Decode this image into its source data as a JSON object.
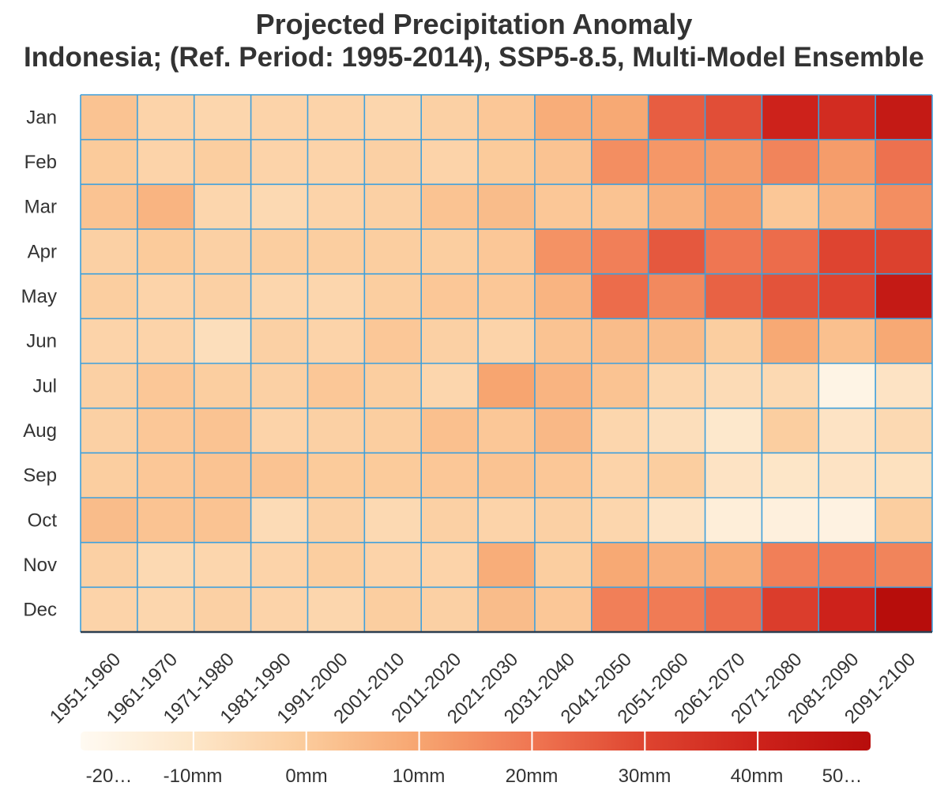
{
  "chart_data": {
    "type": "heatmap",
    "title": "Projected Precipitation Anomaly",
    "subtitle": "Indonesia; (Ref. Period: 1995-2014), SSP5-8.5, Multi-Model Ensemble",
    "rows": [
      "Jan",
      "Feb",
      "Mar",
      "Apr",
      "May",
      "Jun",
      "Jul",
      "Aug",
      "Sep",
      "Oct",
      "Nov",
      "Dec"
    ],
    "columns": [
      "1951-1960",
      "1961-1970",
      "1971-1980",
      "1981-1990",
      "1991-2000",
      "2001-2010",
      "2011-2020",
      "2021-2030",
      "2031-2040",
      "2041-2050",
      "2051-2060",
      "2061-2070",
      "2071-2080",
      "2081-2090",
      "2091-2100"
    ],
    "values": [
      [
        2,
        -3,
        -4,
        -3,
        -3,
        -4,
        -2,
        1,
        8,
        9,
        25,
        28,
        40,
        37,
        44
      ],
      [
        0,
        -3,
        -1,
        -3,
        -3,
        -2,
        -3,
        0,
        2,
        15,
        13,
        12,
        17,
        12,
        21
      ],
      [
        2,
        6,
        -4,
        -5,
        -3,
        -2,
        2,
        4,
        1,
        2,
        7,
        11,
        1,
        6,
        15
      ],
      [
        -2,
        0,
        -2,
        -1,
        -1,
        -1,
        -1,
        1,
        14,
        18,
        26,
        20,
        22,
        30,
        31
      ],
      [
        -1,
        -3,
        -2,
        -4,
        -4,
        -1,
        1,
        1,
        6,
        22,
        16,
        24,
        27,
        30,
        44
      ],
      [
        -3,
        -3,
        -7,
        -2,
        -3,
        1,
        -2,
        -3,
        2,
        4,
        4,
        -1,
        9,
        3,
        9
      ],
      [
        -2,
        1,
        -1,
        -2,
        1,
        -1,
        -4,
        10,
        6,
        2,
        -4,
        -6,
        -5,
        -17,
        -9
      ],
      [
        -2,
        1,
        2,
        -3,
        -2,
        -1,
        3,
        1,
        5,
        -4,
        -7,
        -11,
        -1,
        -9,
        -5
      ],
      [
        -1,
        1,
        2,
        2,
        0,
        0,
        1,
        2,
        1,
        -3,
        -1,
        -9,
        -10,
        -9,
        -8
      ],
      [
        4,
        2,
        2,
        -6,
        -2,
        -5,
        -2,
        -3,
        -2,
        -4,
        -9,
        -14,
        -15,
        -16,
        -1
      ],
      [
        -2,
        -5,
        -4,
        -3,
        -1,
        -3,
        -3,
        8,
        -1,
        9,
        7,
        8,
        18,
        19,
        17
      ],
      [
        -3,
        -4,
        -2,
        -3,
        -4,
        -1,
        -2,
        4,
        1,
        18,
        19,
        22,
        32,
        40,
        50
      ]
    ],
    "colorbar": {
      "ticks": [
        "-20…",
        "-10mm",
        "0mm",
        "10mm",
        "20mm",
        "30mm",
        "40mm",
        "50…"
      ],
      "range": [
        -20,
        50
      ],
      "colormap": "Oranges-Reds"
    },
    "colors": {
      "low": "#fff8ec",
      "high": "#b70d0b",
      "grid": "#3fa0dc",
      "axis_line": "#2c3e50",
      "text": "#333333"
    },
    "grid": true
  }
}
